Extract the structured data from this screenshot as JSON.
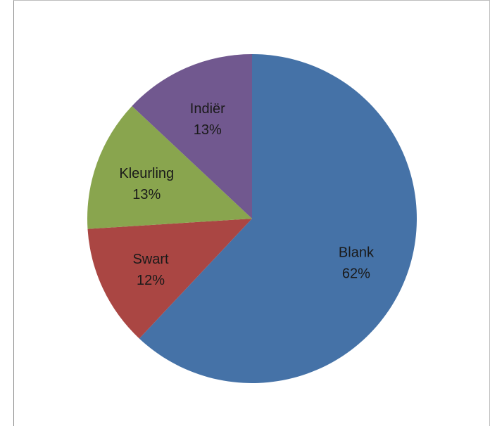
{
  "chart_data": {
    "type": "pie",
    "title": "",
    "slices": [
      {
        "label": "Blank",
        "value": 62,
        "value_label": "62%",
        "color": "#4572a7"
      },
      {
        "label": "Swart",
        "value": 12,
        "value_label": "12%",
        "color": "#aa4643"
      },
      {
        "label": "Kleurling",
        "value": 13,
        "value_label": "13%",
        "color": "#89a54e"
      },
      {
        "label": "Indiër",
        "value": 13,
        "value_label": "13%",
        "color": "#71588f"
      }
    ],
    "start_angle_deg": 0,
    "direction": "clockwise",
    "legend": "none",
    "data_labels": "inside"
  }
}
